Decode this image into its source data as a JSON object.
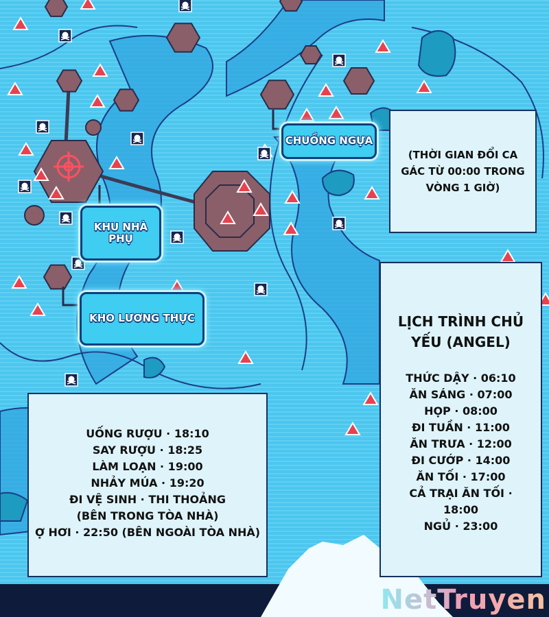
{
  "map_labels": [
    {
      "label": "CHUỒNG NGỰA"
    },
    {
      "label": "KHU NHÀ PHỤ"
    },
    {
      "label": "KHO LƯƠNG THỰC"
    }
  ],
  "shift_note": "(THỜI GIAN ĐỔI CA GÁC TỪ 00:00 TRONG VÒNG 1 GIỜ)",
  "schedule_main": {
    "title": "LỊCH TRÌNH CHỦ YẾU (ANGEL)",
    "items": [
      "THỨC DẬY · 06:10",
      "ĂN SÁNG · 07:00",
      "HỌP · 08:00",
      "ĐI TUẦN · 11:00",
      "ĂN TRƯA · 12:00",
      "ĐI CƯỚP · 14:00",
      "ĂN TỐI · 17:00",
      "CẢ TRẠI ĂN TỐI · 18:00",
      "NGỦ · 23:00"
    ]
  },
  "schedule_night": {
    "items": [
      "UỐNG RƯỢU · 18:10",
      "SAY RƯỢU · 18:25",
      "LÀM LOẠN · 19:00",
      "NHẢY MÚA · 19:20",
      "ĐI VỆ SINH · THI THOẢNG",
      "(BÊN TRONG TÒA NHÀ)",
      "Ợ HƠI · 22:50 (BÊN NGOÀI TÒA NHÀ)"
    ]
  },
  "watermark": "NetTruyen"
}
